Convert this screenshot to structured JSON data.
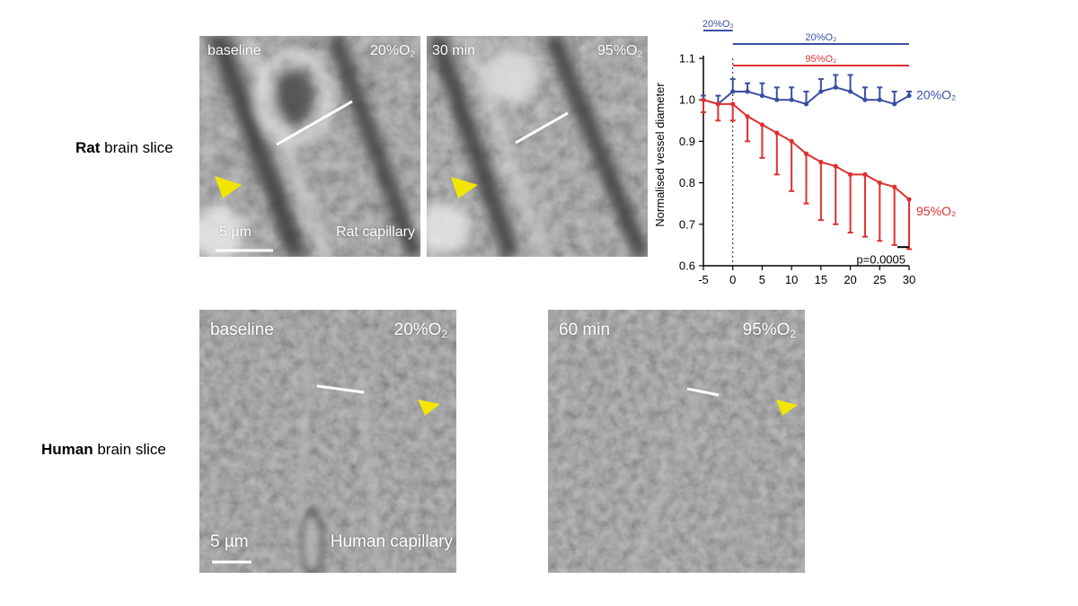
{
  "rows": {
    "rat": {
      "bold": "Rat",
      "rest": " brain slice"
    },
    "human": {
      "bold": "Human",
      "rest": " brain slice"
    }
  },
  "panels": {
    "rat_baseline": {
      "time": "baseline",
      "o2_prefix": "20%O",
      "o2_sub": "2",
      "caption": "Rat  capillary",
      "scale": "5 µm"
    },
    "rat_30": {
      "time": "30 min",
      "o2_prefix": "95%O",
      "o2_sub": "2"
    },
    "human_baseline": {
      "time": "baseline",
      "o2_prefix": "20%O",
      "o2_sub": "2",
      "caption": "Human capillary",
      "scale": "5 µm"
    },
    "human_60": {
      "time": "60 min",
      "o2_prefix": "95%O",
      "o2_sub": "2"
    }
  },
  "colors": {
    "blue": "#3a4fa3",
    "red": "#e03030",
    "arrow": "#f2e600"
  },
  "chart_data": {
    "type": "line",
    "ylabel": "Normalised vessel diameter",
    "xlim": [
      -5,
      30
    ],
    "ylim": [
      0.6,
      1.1
    ],
    "x_ticks": [
      -5,
      0,
      5,
      10,
      15,
      20,
      25,
      30
    ],
    "y_ticks": [
      0.6,
      0.7,
      0.8,
      0.9,
      1.0,
      1.1
    ],
    "top_bars": [
      {
        "label": "20%O₂",
        "x_from": -5,
        "x_to": 0,
        "color": "#3a4fa3"
      },
      {
        "label": "20%O₂",
        "x_from": 0,
        "x_to": 30,
        "color": "#3a4fa3"
      },
      {
        "label": "95%O₂",
        "x_from": 0,
        "x_to": 30,
        "color": "#e03030"
      }
    ],
    "series": [
      {
        "name": "20%O₂",
        "color": "#3a4fa3",
        "error_direction": "up",
        "x": [
          -5,
          -2.5,
          0,
          2.5,
          5,
          7.5,
          10,
          12.5,
          15,
          17.5,
          20,
          22.5,
          25,
          27.5,
          30
        ],
        "y": [
          1.0,
          0.99,
          1.02,
          1.02,
          1.01,
          1.0,
          1.0,
          0.99,
          1.02,
          1.03,
          1.02,
          1.0,
          1.0,
          0.99,
          1.01
        ],
        "err": [
          0.01,
          0.02,
          0.03,
          0.02,
          0.03,
          0.03,
          0.03,
          0.03,
          0.03,
          0.03,
          0.04,
          0.03,
          0.03,
          0.03,
          0.01
        ]
      },
      {
        "name": "95%O₂",
        "color": "#e03030",
        "error_direction": "down",
        "x": [
          -5,
          -2.5,
          0,
          2.5,
          5,
          7.5,
          10,
          12.5,
          15,
          17.5,
          20,
          22.5,
          25,
          27.5,
          30
        ],
        "y": [
          1.0,
          0.99,
          0.99,
          0.96,
          0.94,
          0.92,
          0.9,
          0.87,
          0.85,
          0.84,
          0.82,
          0.82,
          0.8,
          0.79,
          0.76
        ],
        "err": [
          0.03,
          0.04,
          0.04,
          0.06,
          0.08,
          0.1,
          0.12,
          0.12,
          0.14,
          0.14,
          0.14,
          0.15,
          0.14,
          0.14,
          0.12
        ]
      }
    ],
    "annotation": "p=0.0005"
  }
}
